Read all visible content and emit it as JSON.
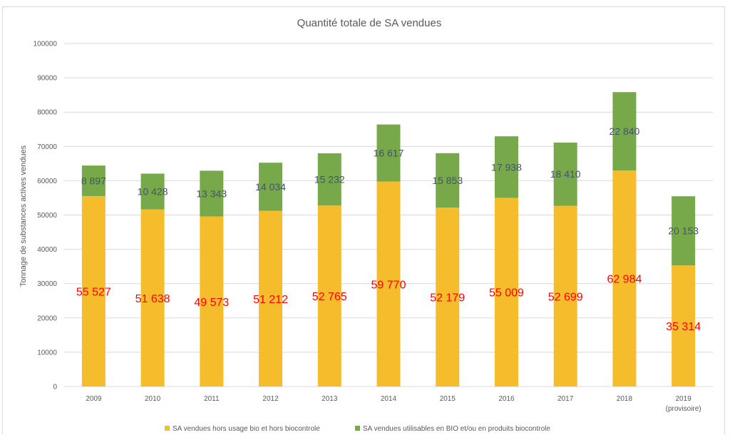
{
  "chart_data": {
    "type": "bar",
    "stacked": true,
    "title": "Quantité totale de SA vendues",
    "xlabel": "",
    "ylabel": "Tonnage de substances actives vendues",
    "ylim": [
      0,
      100000
    ],
    "yticks": [
      0,
      10000,
      20000,
      30000,
      40000,
      50000,
      60000,
      70000,
      80000,
      90000,
      100000
    ],
    "grid": true,
    "legend_position": "bottom",
    "categories": [
      "2009",
      "2010",
      "2011",
      "2012",
      "2013",
      "2014",
      "2015",
      "2016",
      "2017",
      "2018",
      "2019"
    ],
    "category_sublabels": [
      "",
      "",
      "",
      "",
      "",
      "",
      "",
      "",
      "",
      "",
      "(provisoire)"
    ],
    "series": [
      {
        "name": "SA vendues hors usage bio et hors biocontrole",
        "color": "#f5bc2c",
        "label_color": "#ff0000",
        "values": [
          55527,
          51638,
          49573,
          51212,
          52765,
          59770,
          52179,
          55009,
          52699,
          62984,
          35314
        ],
        "labels": [
          "55 527",
          "51 638",
          "49 573",
          "51 212",
          "52 765",
          "59 770",
          "52 179",
          "55 009",
          "52 699",
          "62 984",
          "35 314"
        ]
      },
      {
        "name": "SA vendues  utilisables en BIO et/ou en produits biocontrole",
        "color": "#77a84a",
        "label_color": "#44546a",
        "values": [
          8897,
          10428,
          13343,
          14034,
          15232,
          16617,
          15853,
          17938,
          18410,
          22840,
          20153
        ],
        "labels": [
          "8 897",
          "10 428",
          "13 343",
          "14 034",
          "15 232",
          "16 617",
          "15 853",
          "17 938",
          "18 410",
          "22 840",
          "20 153"
        ]
      }
    ]
  }
}
